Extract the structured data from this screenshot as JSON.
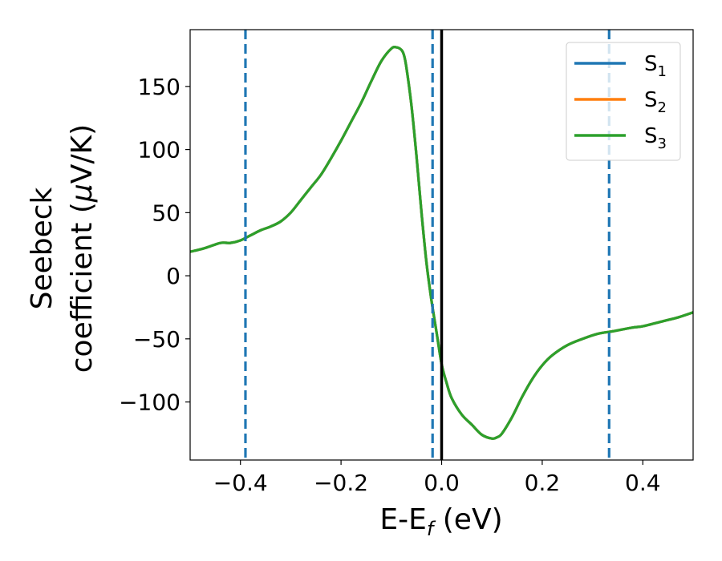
{
  "chart_data": {
    "type": "line",
    "xlabel": "E-E",
    "xlabel_sub": "f",
    "xlabel_unit": " (eV)",
    "ylabel_line1": "Seebeck",
    "ylabel_line2": "coefficient  (",
    "ylabel_mu": "μ",
    "ylabel_unit_end": "V/K)",
    "xlim": [
      -0.5,
      0.5
    ],
    "ylim": [
      -146,
      195
    ],
    "xticks": [
      -0.4,
      -0.2,
      0.0,
      0.2,
      0.4
    ],
    "xtick_labels": [
      "−0.4",
      "−0.2",
      "0.0",
      "0.2",
      "0.4"
    ],
    "yticks": [
      150,
      100,
      50,
      0,
      -50,
      -100
    ],
    "ytick_labels": [
      "150",
      "100",
      "50",
      "0",
      "−50",
      "−100"
    ],
    "vlines_dashed": [
      -0.39,
      -0.018,
      0.333
    ],
    "vline_solid": 0.0,
    "legend_position": "top-right",
    "colors": {
      "S1": "#1f77b4",
      "S2": "#ff7f0e",
      "S3": "#2ca02c",
      "dashed_line": "#1f77b4",
      "solid_line": "#000000"
    },
    "legend": [
      {
        "base": "S",
        "sub": "1",
        "color": "#1f77b4"
      },
      {
        "base": "S",
        "sub": "2",
        "color": "#ff7f0e"
      },
      {
        "base": "S",
        "sub": "3",
        "color": "#2ca02c"
      }
    ],
    "x": [
      -0.5,
      -0.47,
      -0.44,
      -0.42,
      -0.4,
      -0.38,
      -0.36,
      -0.34,
      -0.32,
      -0.3,
      -0.28,
      -0.26,
      -0.24,
      -0.22,
      -0.2,
      -0.18,
      -0.16,
      -0.14,
      -0.12,
      -0.1,
      -0.09,
      -0.08,
      -0.075,
      -0.07,
      -0.06,
      -0.05,
      -0.04,
      -0.03,
      -0.02,
      -0.01,
      0.0,
      0.01,
      0.02,
      0.04,
      0.06,
      0.08,
      0.1,
      0.11,
      0.12,
      0.14,
      0.16,
      0.18,
      0.2,
      0.22,
      0.25,
      0.28,
      0.31,
      0.34,
      0.38,
      0.4,
      0.44,
      0.47,
      0.5
    ],
    "series": [
      {
        "name": "S1",
        "values": [
          19,
          22,
          26,
          26,
          28,
          32,
          36,
          39,
          43,
          50,
          60,
          70,
          80,
          93,
          107,
          122,
          137,
          154,
          170,
          180,
          181,
          179,
          175,
          165,
          135,
          95,
          50,
          10,
          -20,
          -45,
          -70,
          -85,
          -97,
          -110,
          -118,
          -126,
          -129,
          -128,
          -125,
          -112,
          -96,
          -82,
          -71,
          -63,
          -55,
          -50,
          -46,
          -44,
          -41,
          -40,
          -36,
          -33,
          -29
        ]
      },
      {
        "name": "S2",
        "values": [
          19,
          22,
          26,
          26,
          28,
          32,
          36,
          39,
          43,
          50,
          60,
          70,
          80,
          93,
          107,
          122,
          137,
          154,
          170,
          180,
          181,
          179,
          175,
          165,
          135,
          95,
          50,
          10,
          -20,
          -45,
          -70,
          -85,
          -97,
          -110,
          -118,
          -126,
          -129,
          -128,
          -125,
          -112,
          -96,
          -82,
          -71,
          -63,
          -55,
          -50,
          -46,
          -44,
          -41,
          -40,
          -36,
          -33,
          -29
        ]
      },
      {
        "name": "S3",
        "values": [
          19,
          22,
          26,
          26,
          28,
          32,
          36,
          39,
          43,
          50,
          60,
          70,
          80,
          93,
          107,
          122,
          137,
          154,
          170,
          180,
          181,
          179,
          175,
          165,
          135,
          95,
          50,
          10,
          -20,
          -45,
          -70,
          -85,
          -97,
          -110,
          -118,
          -126,
          -129,
          -128,
          -125,
          -112,
          -96,
          -82,
          -71,
          -63,
          -55,
          -50,
          -46,
          -44,
          -41,
          -40,
          -36,
          -33,
          -29
        ]
      }
    ]
  }
}
